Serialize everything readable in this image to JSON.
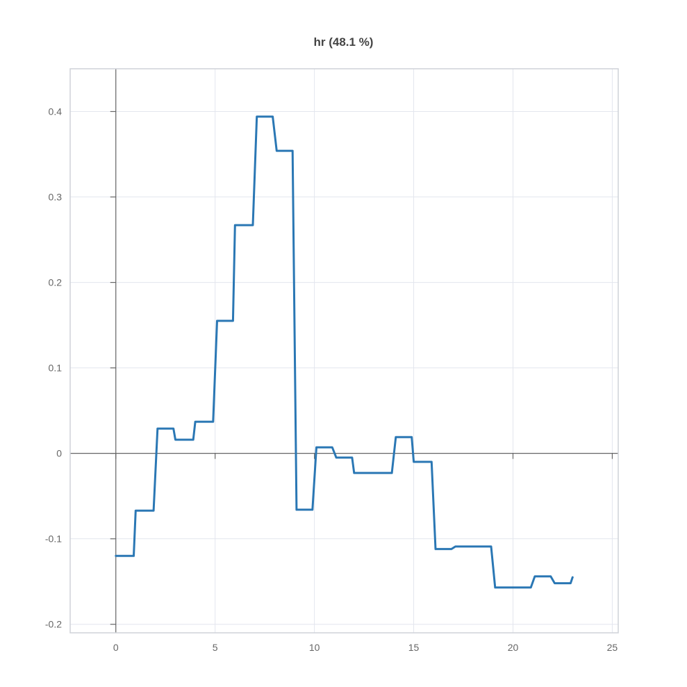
{
  "chart_data": {
    "type": "line",
    "title": "hr (48.1 %)",
    "xlabel": "",
    "ylabel": "",
    "xlim": [
      -2.3,
      25.3
    ],
    "ylim": [
      -0.21,
      0.45
    ],
    "x_ticks": [
      0,
      5,
      10,
      15,
      20,
      25
    ],
    "x_tick_labels": [
      "0",
      "5",
      "10",
      "15",
      "20",
      "25"
    ],
    "y_ticks": [
      -0.2,
      -0.1,
      0,
      0.1,
      0.2,
      0.3,
      0.4
    ],
    "y_tick_labels": [
      "-0.2",
      "-0.1",
      "0",
      "0.1",
      "0.2",
      "0.3",
      "0.4"
    ],
    "grid": true,
    "colors": {
      "series": "#2a77b4",
      "grid": "#e3e6ee",
      "axis": "#666666"
    },
    "series": [
      {
        "name": "",
        "points": [
          [
            0.0,
            -0.12
          ],
          [
            0.9,
            -0.12
          ],
          [
            1.0,
            -0.067
          ],
          [
            1.9,
            -0.067
          ],
          [
            2.1,
            0.029
          ],
          [
            2.9,
            0.029
          ],
          [
            3.0,
            0.016
          ],
          [
            3.9,
            0.016
          ],
          [
            4.0,
            0.037
          ],
          [
            4.9,
            0.037
          ],
          [
            5.1,
            0.155
          ],
          [
            5.9,
            0.155
          ],
          [
            6.0,
            0.267
          ],
          [
            6.9,
            0.267
          ],
          [
            7.1,
            0.394
          ],
          [
            7.9,
            0.394
          ],
          [
            8.1,
            0.354
          ],
          [
            8.9,
            0.354
          ],
          [
            9.1,
            -0.066
          ],
          [
            9.9,
            -0.066
          ],
          [
            10.1,
            0.007
          ],
          [
            10.9,
            0.007
          ],
          [
            11.1,
            -0.005
          ],
          [
            11.9,
            -0.005
          ],
          [
            12.0,
            -0.023
          ],
          [
            13.9,
            -0.023
          ],
          [
            14.1,
            0.019
          ],
          [
            14.9,
            0.019
          ],
          [
            15.0,
            -0.01
          ],
          [
            15.9,
            -0.01
          ],
          [
            16.1,
            -0.112
          ],
          [
            16.9,
            -0.112
          ],
          [
            17.1,
            -0.109
          ],
          [
            18.9,
            -0.109
          ],
          [
            19.1,
            -0.157
          ],
          [
            20.9,
            -0.157
          ],
          [
            21.1,
            -0.144
          ],
          [
            21.9,
            -0.144
          ],
          [
            22.1,
            -0.152
          ],
          [
            22.9,
            -0.152
          ],
          [
            23.0,
            -0.145
          ]
        ]
      }
    ]
  }
}
